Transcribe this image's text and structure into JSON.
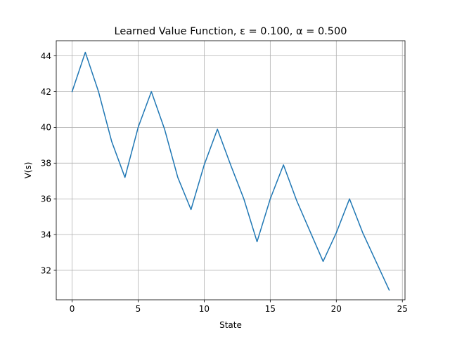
{
  "chart_data": {
    "type": "line",
    "title": "Learned Value Function, ε = 0.100, α = 0.500",
    "xlabel": "State",
    "ylabel": "V(s)",
    "xlim": [
      -1.2,
      25.2
    ],
    "ylim": [
      30.35,
      44.85
    ],
    "xticks": [
      0,
      5,
      10,
      15,
      20,
      25
    ],
    "yticks": [
      32,
      34,
      36,
      38,
      40,
      42,
      44
    ],
    "grid": true,
    "color": "#1f77b4",
    "x": [
      0,
      1,
      2,
      3,
      4,
      5,
      6,
      7,
      8,
      9,
      10,
      11,
      12,
      13,
      14,
      15,
      16,
      17,
      18,
      19,
      20,
      21,
      22,
      23,
      24
    ],
    "y": [
      42.0,
      44.2,
      42.0,
      39.2,
      37.2,
      40.0,
      42.0,
      39.9,
      37.2,
      35.4,
      37.9,
      39.9,
      37.9,
      36.0,
      33.6,
      36.0,
      37.9,
      35.9,
      34.2,
      32.5,
      34.1,
      36.0,
      34.1,
      32.5,
      30.9
    ]
  }
}
